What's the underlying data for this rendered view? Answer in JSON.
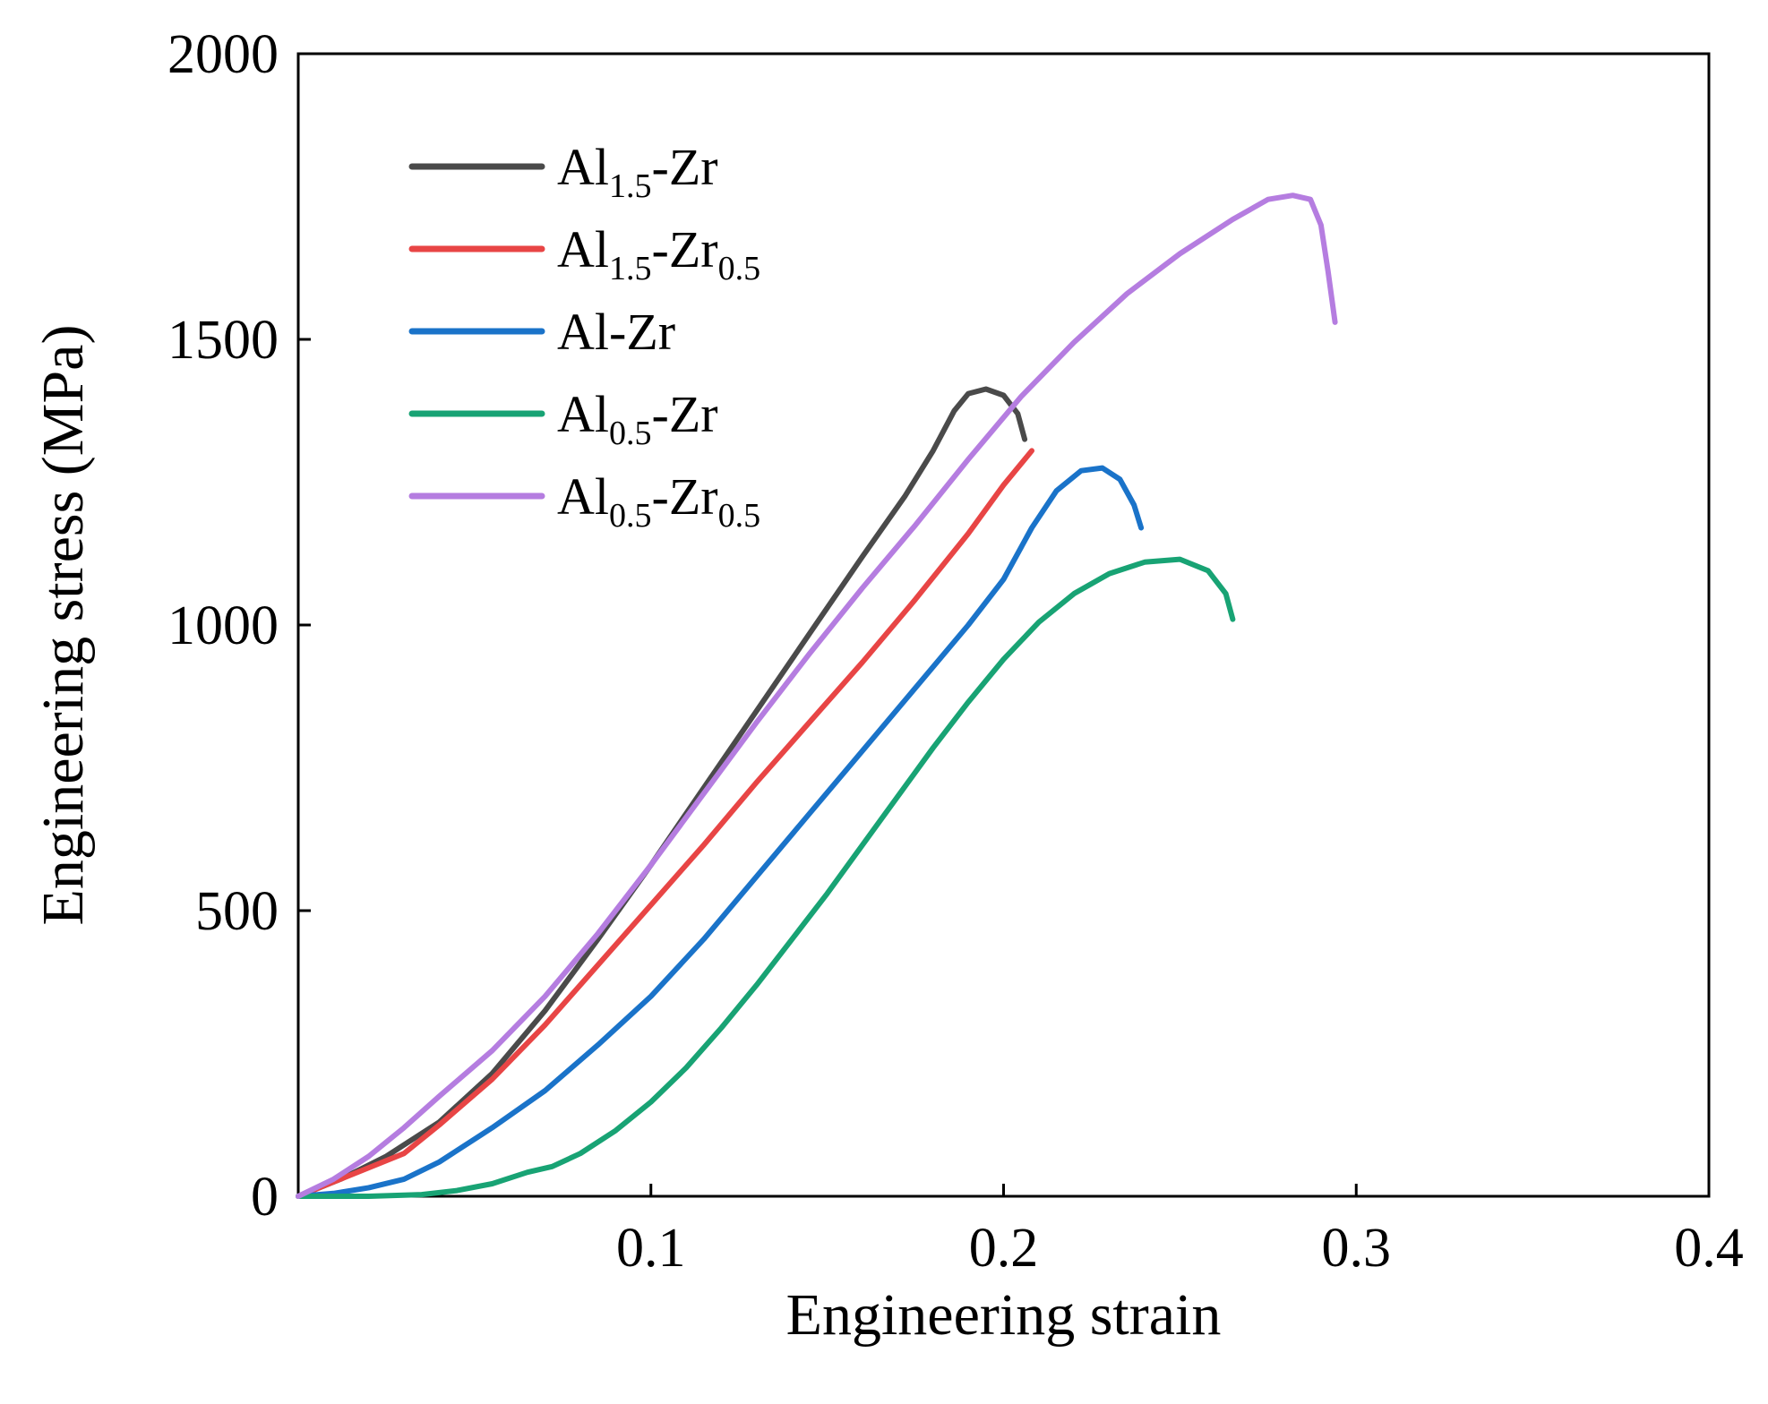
{
  "chart_data": {
    "type": "line",
    "title": "",
    "xlabel": "Engineering strain",
    "ylabel": "Engineering stress (MPa)",
    "xlim": [
      0,
      0.4
    ],
    "ylim": [
      0,
      2000
    ],
    "x_ticks": [
      {
        "value": 0.1,
        "label": "0.1"
      },
      {
        "value": 0.2,
        "label": "0.2"
      },
      {
        "value": 0.3,
        "label": "0.3"
      },
      {
        "value": 0.4,
        "label": "0.4"
      }
    ],
    "y_ticks": [
      {
        "value": 0,
        "label": "0"
      },
      {
        "value": 500,
        "label": "500"
      },
      {
        "value": 1000,
        "label": "1000"
      },
      {
        "value": 1500,
        "label": "1500"
      },
      {
        "value": 2000,
        "label": "2000"
      }
    ],
    "grid": false,
    "legend_position": "top-left",
    "series": [
      {
        "name": "Al1.5-Zr",
        "label_parts": [
          {
            "t": "Al"
          },
          {
            "t": "1.5",
            "sub": true
          },
          {
            "t": "-Zr"
          }
        ],
        "color": "#4a4a4a",
        "points": [
          [
            0,
            0
          ],
          [
            0.012,
            30
          ],
          [
            0.025,
            70
          ],
          [
            0.04,
            130
          ],
          [
            0.055,
            215
          ],
          [
            0.07,
            325
          ],
          [
            0.085,
            450
          ],
          [
            0.1,
            580
          ],
          [
            0.115,
            715
          ],
          [
            0.13,
            850
          ],
          [
            0.145,
            985
          ],
          [
            0.16,
            1120
          ],
          [
            0.172,
            1225
          ],
          [
            0.18,
            1305
          ],
          [
            0.186,
            1375
          ],
          [
            0.19,
            1405
          ],
          [
            0.195,
            1413
          ],
          [
            0.2,
            1402
          ],
          [
            0.204,
            1370
          ],
          [
            0.206,
            1325
          ]
        ]
      },
      {
        "name": "Al1.5-Zr0.5",
        "label_parts": [
          {
            "t": "Al"
          },
          {
            "t": "1.5",
            "sub": true
          },
          {
            "t": "-Zr"
          },
          {
            "t": "0.5",
            "sub": true
          }
        ],
        "color": "#e84545",
        "points": [
          [
            0,
            0
          ],
          [
            0.01,
            25
          ],
          [
            0.02,
            50
          ],
          [
            0.03,
            75
          ],
          [
            0.04,
            125
          ],
          [
            0.055,
            205
          ],
          [
            0.07,
            300
          ],
          [
            0.085,
            405
          ],
          [
            0.1,
            510
          ],
          [
            0.115,
            615
          ],
          [
            0.13,
            725
          ],
          [
            0.145,
            830
          ],
          [
            0.16,
            935
          ],
          [
            0.175,
            1045
          ],
          [
            0.19,
            1160
          ],
          [
            0.2,
            1245
          ],
          [
            0.208,
            1305
          ]
        ]
      },
      {
        "name": "Al-Zr",
        "label_parts": [
          {
            "t": "Al-Zr"
          }
        ],
        "color": "#1a73c9",
        "points": [
          [
            0,
            0
          ],
          [
            0.01,
            5
          ],
          [
            0.02,
            15
          ],
          [
            0.03,
            30
          ],
          [
            0.04,
            60
          ],
          [
            0.055,
            120
          ],
          [
            0.07,
            185
          ],
          [
            0.085,
            265
          ],
          [
            0.1,
            350
          ],
          [
            0.115,
            450
          ],
          [
            0.13,
            560
          ],
          [
            0.145,
            670
          ],
          [
            0.16,
            780
          ],
          [
            0.175,
            890
          ],
          [
            0.19,
            1000
          ],
          [
            0.2,
            1080
          ],
          [
            0.208,
            1170
          ],
          [
            0.215,
            1235
          ],
          [
            0.222,
            1270
          ],
          [
            0.228,
            1275
          ],
          [
            0.233,
            1255
          ],
          [
            0.237,
            1210
          ],
          [
            0.239,
            1170
          ]
        ]
      },
      {
        "name": "Al0.5-Zr",
        "label_parts": [
          {
            "t": "Al"
          },
          {
            "t": "0.5",
            "sub": true
          },
          {
            "t": "-Zr"
          }
        ],
        "color": "#18a374",
        "points": [
          [
            0,
            0
          ],
          [
            0.02,
            0
          ],
          [
            0.035,
            3
          ],
          [
            0.045,
            10
          ],
          [
            0.055,
            22
          ],
          [
            0.065,
            42
          ],
          [
            0.072,
            52
          ],
          [
            0.08,
            75
          ],
          [
            0.09,
            115
          ],
          [
            0.1,
            165
          ],
          [
            0.11,
            225
          ],
          [
            0.12,
            295
          ],
          [
            0.13,
            370
          ],
          [
            0.14,
            450
          ],
          [
            0.15,
            530
          ],
          [
            0.16,
            615
          ],
          [
            0.17,
            700
          ],
          [
            0.18,
            785
          ],
          [
            0.19,
            865
          ],
          [
            0.2,
            940
          ],
          [
            0.21,
            1005
          ],
          [
            0.22,
            1055
          ],
          [
            0.23,
            1090
          ],
          [
            0.24,
            1110
          ],
          [
            0.25,
            1115
          ],
          [
            0.258,
            1095
          ],
          [
            0.263,
            1055
          ],
          [
            0.265,
            1010
          ]
        ]
      },
      {
        "name": "Al0.5-Zr0.5",
        "label_parts": [
          {
            "t": "Al"
          },
          {
            "t": "0.5",
            "sub": true
          },
          {
            "t": "-Zr"
          },
          {
            "t": "0.5",
            "sub": true
          }
        ],
        "color": "#b57de0",
        "points": [
          [
            0,
            0
          ],
          [
            0.01,
            30
          ],
          [
            0.02,
            70
          ],
          [
            0.03,
            120
          ],
          [
            0.04,
            175
          ],
          [
            0.055,
            255
          ],
          [
            0.07,
            350
          ],
          [
            0.085,
            460
          ],
          [
            0.1,
            580
          ],
          [
            0.115,
            705
          ],
          [
            0.13,
            830
          ],
          [
            0.145,
            950
          ],
          [
            0.16,
            1065
          ],
          [
            0.175,
            1175
          ],
          [
            0.19,
            1290
          ],
          [
            0.205,
            1400
          ],
          [
            0.22,
            1495
          ],
          [
            0.235,
            1580
          ],
          [
            0.25,
            1650
          ],
          [
            0.265,
            1710
          ],
          [
            0.275,
            1745
          ],
          [
            0.282,
            1752
          ],
          [
            0.287,
            1745
          ],
          [
            0.29,
            1700
          ],
          [
            0.292,
            1620
          ],
          [
            0.294,
            1530
          ]
        ]
      }
    ]
  }
}
